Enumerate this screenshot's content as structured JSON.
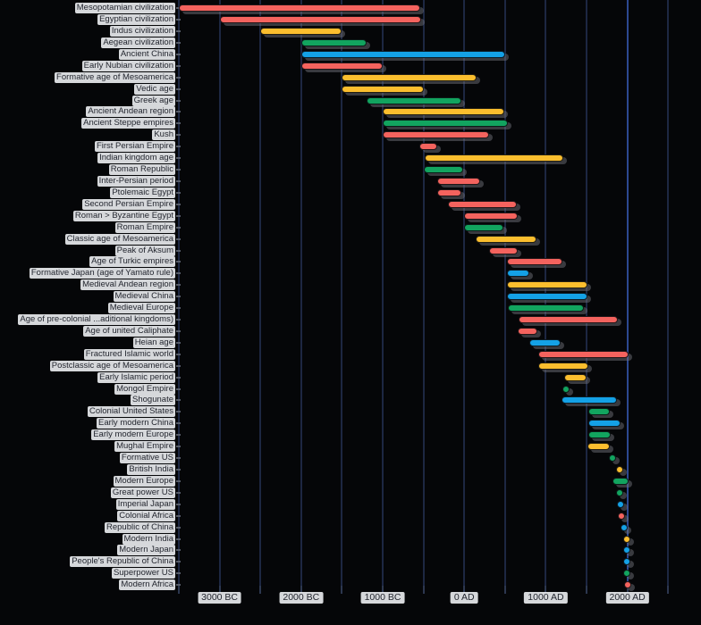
{
  "chart_data": {
    "type": "bar",
    "subtype": "timeline-gantt",
    "title": "",
    "xlabel": "",
    "ylabel": "",
    "legend": "none",
    "grid": "vertical",
    "axis": {
      "xmin": -3500,
      "xmax": 2903,
      "unit": "years"
    },
    "gridline_years": [
      -3500,
      -3000,
      -2500,
      -2000,
      -1500,
      -1000,
      -500,
      0,
      500,
      1000,
      1500,
      2000,
      2500
    ],
    "x_ticks": [
      {
        "year": -3000,
        "label": "3000 BC"
      },
      {
        "year": -2000,
        "label": "2000 BC"
      },
      {
        "year": -1000,
        "label": "1000 BC"
      },
      {
        "year": 0,
        "label": "0 AD"
      },
      {
        "year": 1000,
        "label": "1000 AD"
      },
      {
        "year": 2000,
        "label": "2000 AD"
      }
    ],
    "today_line": {
      "year": 2005
    },
    "colors": {
      "red": "#f4635e",
      "yellow": "#fbbe2e",
      "green": "#12a45f",
      "blue": "#14a1e6"
    },
    "style": {
      "background": "#050608",
      "gridline_color": "#1d2742",
      "today_line_color": "#2c4890",
      "tick_color": "#2c374f",
      "label_text_color": "#23262f",
      "label_chip_color": "rgba(232,234,238,0.92)",
      "row_tick_color": "#565c68",
      "bar_shadow_color": "rgba(115,115,124,0.48)"
    },
    "rows": [
      {
        "label": "Mesopotamian civilization",
        "start": -3500,
        "end": -540,
        "color": "red"
      },
      {
        "label": "Egyptian civilization",
        "start": -3000,
        "end": -530,
        "color": "red"
      },
      {
        "label": "Indus civilization",
        "start": -2500,
        "end": -1500,
        "color": "yellow"
      },
      {
        "label": "Aegean civilization",
        "start": -2000,
        "end": -1200,
        "color": "green"
      },
      {
        "label": "Ancient China",
        "start": -2000,
        "end": 500,
        "color": "blue"
      },
      {
        "label": "Early Nubian civilization",
        "start": -2000,
        "end": -1000,
        "color": "red"
      },
      {
        "label": "Formative age of Mesoamerica",
        "start": -1500,
        "end": 150,
        "color": "yellow"
      },
      {
        "label": "Vedic age",
        "start": -1500,
        "end": -500,
        "color": "yellow"
      },
      {
        "label": "Greek age",
        "start": -1200,
        "end": -40,
        "color": "green"
      },
      {
        "label": "Ancient Andean region",
        "start": -1000,
        "end": 490,
        "color": "yellow"
      },
      {
        "label": "Ancient Steppe empires",
        "start": -1000,
        "end": 540,
        "color": "green"
      },
      {
        "label": "Kush",
        "start": -1000,
        "end": 310,
        "color": "red"
      },
      {
        "label": "First Persian Empire",
        "start": -550,
        "end": -330,
        "color": "red"
      },
      {
        "label": "Indian kingdom age",
        "start": -490,
        "end": 1210,
        "color": "yellow"
      },
      {
        "label": "Roman Republic",
        "start": -500,
        "end": -10,
        "color": "green"
      },
      {
        "label": "Inter-Persian period",
        "start": -330,
        "end": 190,
        "color": "red"
      },
      {
        "label": "Ptolemaic Egypt",
        "start": -330,
        "end": -30,
        "color": "red"
      },
      {
        "label": "Second Persian Empire",
        "start": -200,
        "end": 650,
        "color": "red"
      },
      {
        "label": "Roman > Byzantine Egypt",
        "start": 0,
        "end": 650,
        "color": "red"
      },
      {
        "label": "Roman Empire",
        "start": 0,
        "end": 480,
        "color": "green"
      },
      {
        "label": "Classic age of Mesoamerica",
        "start": 140,
        "end": 890,
        "color": "yellow"
      },
      {
        "label": "Peak of Aksum",
        "start": 300,
        "end": 650,
        "color": "red"
      },
      {
        "label": "Age of Turkic empires",
        "start": 520,
        "end": 1200,
        "color": "red"
      },
      {
        "label": "Formative Japan (age of Yamato rule)",
        "start": 520,
        "end": 800,
        "color": "blue"
      },
      {
        "label": "Medieval Andean region",
        "start": 520,
        "end": 1510,
        "color": "yellow"
      },
      {
        "label": "Medieval China",
        "start": 520,
        "end": 1510,
        "color": "blue"
      },
      {
        "label": "Medieval Europe",
        "start": 540,
        "end": 1470,
        "color": "green"
      },
      {
        "label": "Age of pre-colonial ...aditional kingdoms)",
        "start": 670,
        "end": 1880,
        "color": "red"
      },
      {
        "label": "Age of united Caliphate",
        "start": 660,
        "end": 900,
        "color": "red"
      },
      {
        "label": "Heian age",
        "start": 794,
        "end": 1185,
        "color": "blue"
      },
      {
        "label": "Fractured Islamic world",
        "start": 910,
        "end": 2020,
        "color": "red"
      },
      {
        "label": "Postclassic age of Mesoamerica",
        "start": 910,
        "end": 1520,
        "color": "yellow"
      },
      {
        "label": "Early Islamic period",
        "start": 1230,
        "end": 1500,
        "color": "yellow"
      },
      {
        "label": "Mongol Empire",
        "start": 1206,
        "end": 1294,
        "color": "green"
      },
      {
        "label": "Shogunate",
        "start": 1192,
        "end": 1868,
        "color": "blue"
      },
      {
        "label": "Colonial United States",
        "start": 1520,
        "end": 1780,
        "color": "green"
      },
      {
        "label": "Early modern China",
        "start": 1520,
        "end": 1912,
        "color": "blue"
      },
      {
        "label": "Early modern Europe",
        "start": 1520,
        "end": 1800,
        "color": "green"
      },
      {
        "label": "Mughal Empire",
        "start": 1510,
        "end": 1790,
        "color": "yellow"
      },
      {
        "label": "Formative US",
        "start": 1776,
        "end": 1865,
        "color": "green"
      },
      {
        "label": "British India",
        "start": 1858,
        "end": 1947,
        "color": "yellow"
      },
      {
        "label": "Modern Europe",
        "start": 1815,
        "end": 2020,
        "color": "green"
      },
      {
        "label": "Great power US",
        "start": 1865,
        "end": 1945,
        "color": "green"
      },
      {
        "label": "Imperial Japan",
        "start": 1868,
        "end": 1945,
        "color": "blue"
      },
      {
        "label": "Colonial Africa",
        "start": 1880,
        "end": 1960,
        "color": "red"
      },
      {
        "label": "Republic of China",
        "start": 1912,
        "end": 1949,
        "color": "blue"
      },
      {
        "label": "Modern India",
        "start": 1947,
        "end": 2020,
        "color": "yellow"
      },
      {
        "label": "Modern Japan",
        "start": 1945,
        "end": 2020,
        "color": "blue"
      },
      {
        "label": "People's Republic of China",
        "start": 1949,
        "end": 2020,
        "color": "blue"
      },
      {
        "label": "Superpower US",
        "start": 1945,
        "end": 2020,
        "color": "green"
      },
      {
        "label": "Modern Africa",
        "start": 1960,
        "end": 2020,
        "color": "red"
      }
    ]
  }
}
